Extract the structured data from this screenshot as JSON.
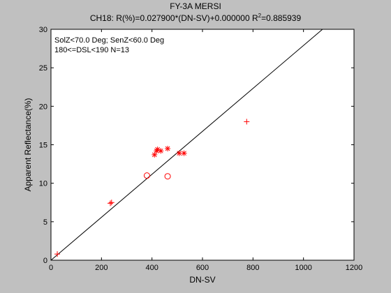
{
  "chart_data": {
    "type": "scatter",
    "title": "FY-3A MERSI",
    "subtitle": {
      "prefix": "CH18: R(%)=0.027900*(DN-SV)+0.000000 R",
      "superscript": "2",
      "suffix": "=0.885939"
    },
    "annotations": [
      "SolZ<70.0 Deg; SenZ<60.0 Deg",
      "180<=DSL<190 N=13"
    ],
    "xlabel": "DN-SV",
    "ylabel": "Apparent Reflectance(%)",
    "xlim": [
      0,
      1200
    ],
    "ylim": [
      0,
      30
    ],
    "xticks": [
      0,
      200,
      400,
      600,
      800,
      1000,
      1200
    ],
    "yticks": [
      0,
      5,
      10,
      15,
      20,
      25,
      30
    ],
    "grid": false,
    "fit_line": {
      "slope": 0.0279,
      "intercept": 0.0
    },
    "series": [
      {
        "marker": "plus",
        "color": "#ff0000",
        "points": [
          [
            25,
            0.8
          ],
          [
            235,
            7.4
          ],
          [
            240,
            7.5
          ],
          [
            775,
            18.0
          ]
        ]
      },
      {
        "marker": "star",
        "color": "#ff0000",
        "points": [
          [
            410,
            13.7
          ],
          [
            418,
            14.2
          ],
          [
            422,
            14.4
          ],
          [
            435,
            14.2
          ],
          [
            462,
            14.5
          ],
          [
            508,
            13.9
          ],
          [
            527,
            13.9
          ]
        ]
      },
      {
        "marker": "circle",
        "color": "#ff0000",
        "points": [
          [
            380,
            11.0
          ],
          [
            462,
            10.9
          ]
        ]
      }
    ]
  }
}
